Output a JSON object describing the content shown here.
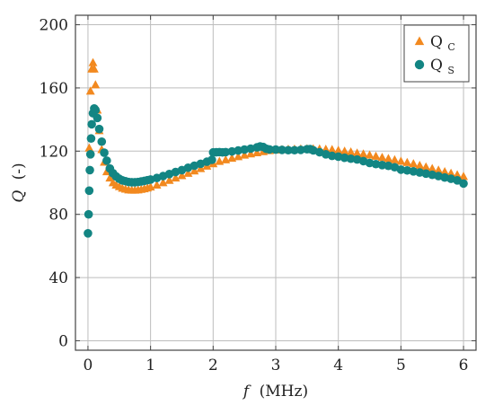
{
  "chart_data": {
    "type": "scatter",
    "xlabel_var": "f",
    "xlabel_unit": "(MHz)",
    "ylabel_var": "Q",
    "ylabel_unit": "(-)",
    "xlim": [
      -0.2,
      6.2
    ],
    "ylim": [
      -6,
      206
    ],
    "xticks": [
      0,
      1,
      2,
      3,
      4,
      5,
      6
    ],
    "yticks": [
      0,
      40,
      80,
      120,
      160,
      200
    ],
    "grid": true,
    "legend_position": "top-right",
    "series": [
      {
        "name": "Q",
        "name_sub": "C",
        "marker": "triangle",
        "color": "#f2891f",
        "points": [
          [
            0.02,
            122
          ],
          [
            0.04,
            158
          ],
          [
            0.06,
            172
          ],
          [
            0.08,
            176
          ],
          [
            0.1,
            172
          ],
          [
            0.12,
            162
          ],
          [
            0.15,
            146
          ],
          [
            0.18,
            133
          ],
          [
            0.22,
            121
          ],
          [
            0.26,
            113
          ],
          [
            0.3,
            107
          ],
          [
            0.35,
            103
          ],
          [
            0.4,
            100
          ],
          [
            0.45,
            98.5
          ],
          [
            0.5,
            97.5
          ],
          [
            0.55,
            96.5
          ],
          [
            0.6,
            96
          ],
          [
            0.65,
            95.5
          ],
          [
            0.7,
            95.3
          ],
          [
            0.75,
            95.3
          ],
          [
            0.8,
            95.5
          ],
          [
            0.85,
            95.8
          ],
          [
            0.9,
            96.2
          ],
          [
            0.95,
            96.7
          ],
          [
            1.0,
            97.3
          ],
          [
            1.1,
            98.5
          ],
          [
            1.2,
            100
          ],
          [
            1.3,
            101.5
          ],
          [
            1.4,
            103
          ],
          [
            1.5,
            104.5
          ],
          [
            1.6,
            106
          ],
          [
            1.7,
            107.5
          ],
          [
            1.8,
            109
          ],
          [
            1.9,
            110.5
          ],
          [
            2.0,
            112
          ],
          [
            2.1,
            113.5
          ],
          [
            2.2,
            114.5
          ],
          [
            2.3,
            115.5
          ],
          [
            2.4,
            116.5
          ],
          [
            2.5,
            117.5
          ],
          [
            2.6,
            118.3
          ],
          [
            2.7,
            119
          ],
          [
            2.8,
            119.7
          ],
          [
            2.9,
            120.3
          ],
          [
            3.0,
            120.7
          ],
          [
            3.1,
            121
          ],
          [
            3.2,
            121.2
          ],
          [
            3.3,
            121.3
          ],
          [
            3.4,
            121.4
          ],
          [
            3.5,
            121.5
          ],
          [
            3.6,
            121.5
          ],
          [
            3.7,
            121.4
          ],
          [
            3.8,
            121.2
          ],
          [
            3.9,
            121
          ],
          [
            4.0,
            120.5
          ],
          [
            4.1,
            120
          ],
          [
            4.2,
            119.5
          ],
          [
            4.3,
            118.8
          ],
          [
            4.4,
            118.2
          ],
          [
            4.5,
            117.5
          ],
          [
            4.6,
            116.8
          ],
          [
            4.7,
            116
          ],
          [
            4.8,
            115.3
          ],
          [
            4.9,
            114.5
          ],
          [
            5.0,
            113.6
          ],
          [
            5.1,
            112.8
          ],
          [
            5.2,
            112
          ],
          [
            5.3,
            111
          ],
          [
            5.4,
            110
          ],
          [
            5.5,
            109
          ],
          [
            5.6,
            108
          ],
          [
            5.7,
            107
          ],
          [
            5.8,
            106
          ],
          [
            5.9,
            105
          ],
          [
            6.0,
            104
          ]
        ]
      },
      {
        "name": "Q",
        "name_sub": "S",
        "marker": "circle",
        "color": "#138583",
        "points": [
          [
            0.0,
            68
          ],
          [
            0.01,
            80
          ],
          [
            0.02,
            95
          ],
          [
            0.03,
            108
          ],
          [
            0.04,
            118
          ],
          [
            0.05,
            128
          ],
          [
            0.06,
            137
          ],
          [
            0.08,
            144
          ],
          [
            0.1,
            147
          ],
          [
            0.12,
            146
          ],
          [
            0.15,
            141
          ],
          [
            0.18,
            134
          ],
          [
            0.22,
            126
          ],
          [
            0.26,
            119
          ],
          [
            0.3,
            114
          ],
          [
            0.35,
            109
          ],
          [
            0.4,
            106
          ],
          [
            0.45,
            104
          ],
          [
            0.5,
            102.5
          ],
          [
            0.55,
            101.5
          ],
          [
            0.6,
            101
          ],
          [
            0.65,
            100.5
          ],
          [
            0.7,
            100.3
          ],
          [
            0.75,
            100.3
          ],
          [
            0.8,
            100.5
          ],
          [
            0.85,
            100.8
          ],
          [
            0.9,
            101.2
          ],
          [
            0.95,
            101.6
          ],
          [
            1.0,
            102
          ],
          [
            1.1,
            103
          ],
          [
            1.2,
            104.2
          ],
          [
            1.3,
            105.5
          ],
          [
            1.4,
            106.8
          ],
          [
            1.5,
            108
          ],
          [
            1.6,
            109.5
          ],
          [
            1.7,
            110.8
          ],
          [
            1.8,
            112
          ],
          [
            1.9,
            113.3
          ],
          [
            1.98,
            114.5
          ],
          [
            2.0,
            119.2
          ],
          [
            2.05,
            119.3
          ],
          [
            2.1,
            119.4
          ],
          [
            2.15,
            119.2
          ],
          [
            2.2,
            119.4
          ],
          [
            2.3,
            119.8
          ],
          [
            2.4,
            120.4
          ],
          [
            2.5,
            121
          ],
          [
            2.6,
            121.6
          ],
          [
            2.7,
            122.4
          ],
          [
            2.75,
            123
          ],
          [
            2.8,
            122.6
          ],
          [
            2.85,
            121.5
          ],
          [
            2.9,
            121.1
          ],
          [
            3.0,
            121
          ],
          [
            3.1,
            120.8
          ],
          [
            3.2,
            120.6
          ],
          [
            3.3,
            120.6
          ],
          [
            3.4,
            120.8
          ],
          [
            3.5,
            121.2
          ],
          [
            3.55,
            121.3
          ],
          [
            3.6,
            120.5
          ],
          [
            3.7,
            119.3
          ],
          [
            3.8,
            118
          ],
          [
            3.9,
            117
          ],
          [
            4.0,
            116.5
          ],
          [
            4.1,
            115.8
          ],
          [
            4.2,
            115.2
          ],
          [
            4.3,
            114.7
          ],
          [
            4.4,
            113.7
          ],
          [
            4.5,
            112.5
          ],
          [
            4.6,
            111.8
          ],
          [
            4.7,
            111.2
          ],
          [
            4.8,
            110.7
          ],
          [
            4.9,
            109.8
          ],
          [
            5.0,
            108.3
          ],
          [
            5.1,
            107.8
          ],
          [
            5.2,
            107.2
          ],
          [
            5.3,
            106.5
          ],
          [
            5.4,
            105.8
          ],
          [
            5.5,
            105
          ],
          [
            5.6,
            104.2
          ],
          [
            5.7,
            103.3
          ],
          [
            5.8,
            102.5
          ],
          [
            5.9,
            101.5
          ],
          [
            6.0,
            99.5
          ]
        ]
      }
    ]
  }
}
